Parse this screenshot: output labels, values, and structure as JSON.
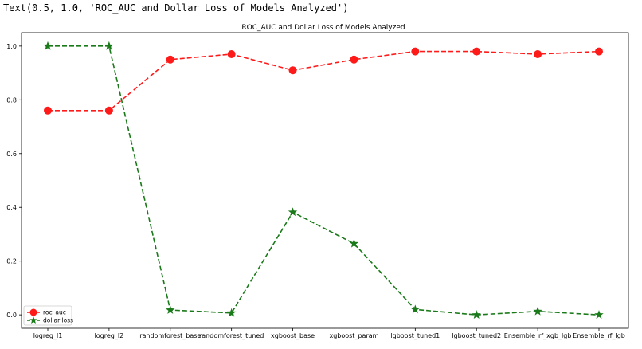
{
  "output_text": "Text(0.5, 1.0, 'ROC_AUC and Dollar Loss of Models Analyzed')",
  "chart_data": {
    "type": "line",
    "title": "ROC_AUC and Dollar Loss of Models Analyzed",
    "xlabel": "",
    "ylabel": "",
    "categories": [
      "logreg_l1",
      "logreg_l2",
      "randomforest_base",
      "randomforest_tuned",
      "xgboost_base",
      "xgboost_param",
      "lgboost_tuned1",
      "lgboost_tuned2",
      "Ensemble_rf_xgb_lgb",
      "Ensemble_rf_lgb"
    ],
    "ylim": [
      -0.05,
      1.05
    ],
    "yticks": [
      "0.0",
      "0.2",
      "0.4",
      "0.6",
      "0.8",
      "1.0"
    ],
    "grid": false,
    "legend_position": "lower-left",
    "series": [
      {
        "name": "roc_auc",
        "values": [
          0.76,
          0.76,
          0.95,
          0.97,
          0.91,
          0.95,
          0.98,
          0.98,
          0.97,
          0.98
        ],
        "color": "#ff1a1a",
        "marker": "circle",
        "linestyle": "dashed"
      },
      {
        "name": "dollar loss",
        "values": [
          1.0,
          1.0,
          0.018,
          0.007,
          0.382,
          0.265,
          0.02,
          0.0,
          0.013,
          0.0
        ],
        "color": "#1a7a1a",
        "marker": "star",
        "linestyle": "dashed"
      }
    ]
  }
}
